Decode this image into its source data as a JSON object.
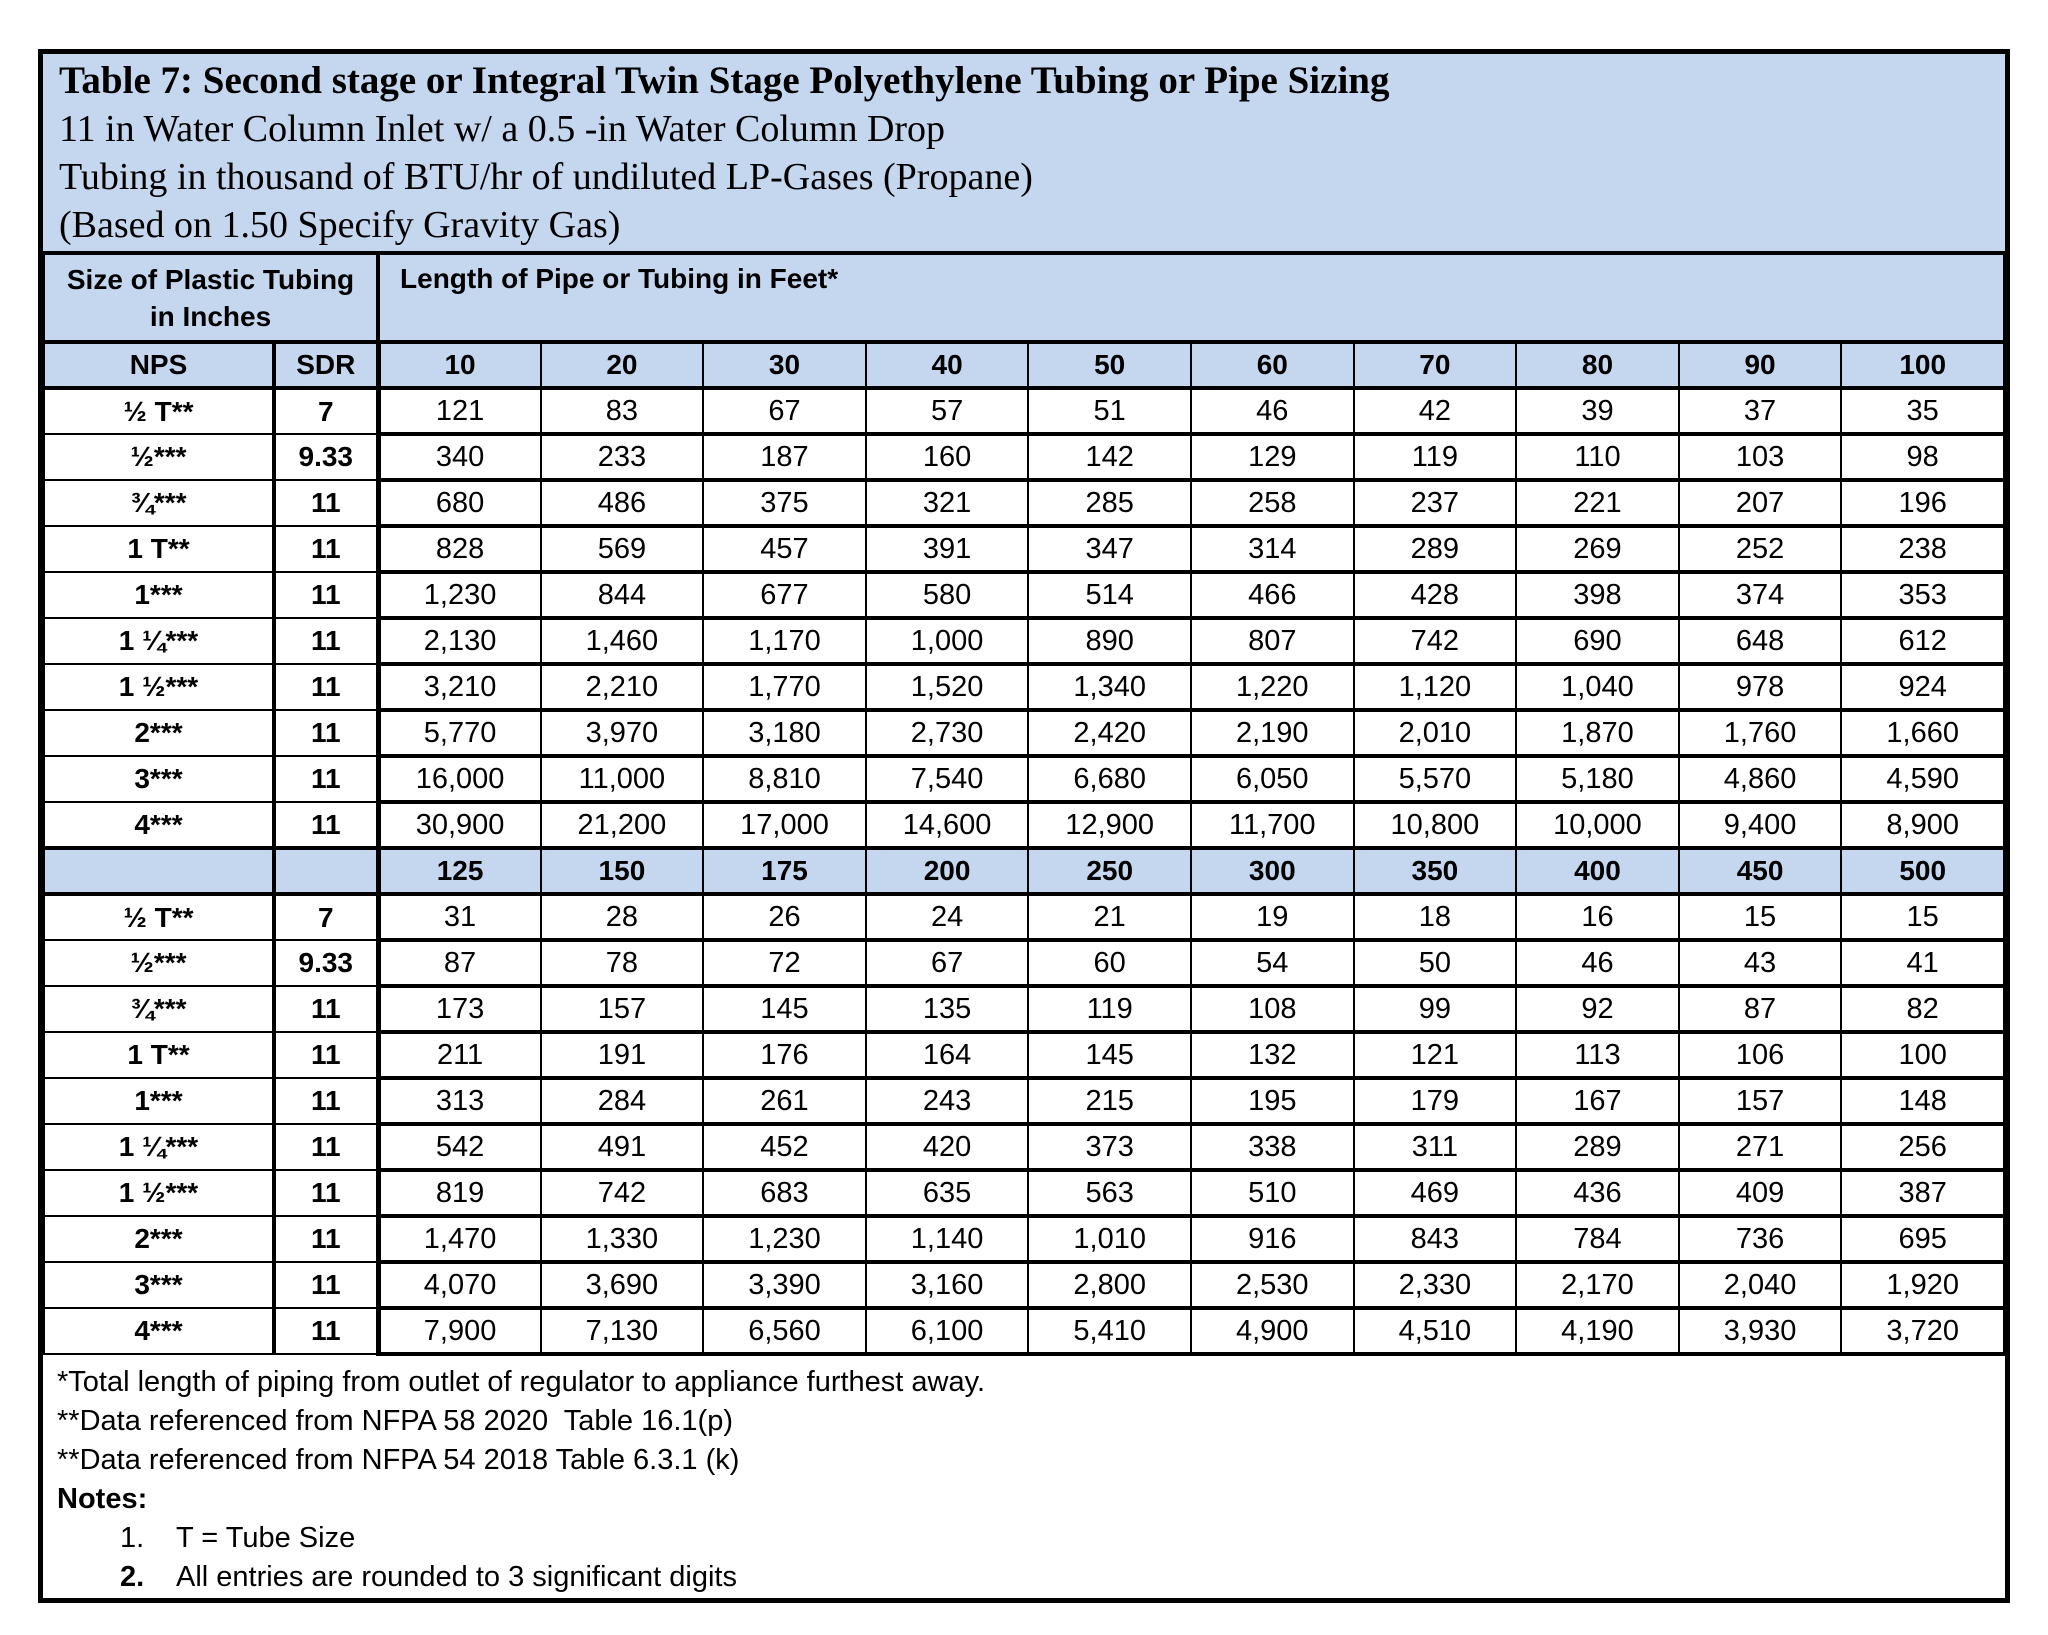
{
  "colors": {
    "header_bg": "#c5d7ef",
    "border": "#000000",
    "page_bg": "#ffffff"
  },
  "title": {
    "line1": "Table 7: Second stage or Integral Twin Stage Polyethylene Tubing or Pipe Sizing",
    "line2": "11 in Water Column Inlet w/ a 0.5 -in Water Column Drop",
    "line3": "Tubing in thousand of BTU/hr of undiluted LP-Gases (Propane)",
    "line4": "(Based on 1.50 Specify Gravity Gas)"
  },
  "table": {
    "group_headers": {
      "size_label_line1": "Size of Plastic Tubing",
      "size_label_line2": "in Inches",
      "length_label": "Length of Pipe or Tubing in Feet*"
    },
    "columns_first": [
      "NPS",
      "SDR",
      "10",
      "20",
      "30",
      "40",
      "50",
      "60",
      "70",
      "80",
      "90",
      "100"
    ],
    "rows_first": [
      {
        "nps": "½ T**",
        "sdr": "7",
        "values": [
          "121",
          "83",
          "67",
          "57",
          "51",
          "46",
          "42",
          "39",
          "37",
          "35"
        ]
      },
      {
        "nps": "½***",
        "sdr": "9.33",
        "values": [
          "340",
          "233",
          "187",
          "160",
          "142",
          "129",
          "119",
          "110",
          "103",
          "98"
        ]
      },
      {
        "nps": "¾***",
        "sdr": "11",
        "values": [
          "680",
          "486",
          "375",
          "321",
          "285",
          "258",
          "237",
          "221",
          "207",
          "196"
        ]
      },
      {
        "nps": "1 T**",
        "sdr": "11",
        "values": [
          "828",
          "569",
          "457",
          "391",
          "347",
          "314",
          "289",
          "269",
          "252",
          "238"
        ]
      },
      {
        "nps": "1***",
        "sdr": "11",
        "values": [
          "1,230",
          "844",
          "677",
          "580",
          "514",
          "466",
          "428",
          "398",
          "374",
          "353"
        ]
      },
      {
        "nps": "1 ¼***",
        "sdr": "11",
        "values": [
          "2,130",
          "1,460",
          "1,170",
          "1,000",
          "890",
          "807",
          "742",
          "690",
          "648",
          "612"
        ]
      },
      {
        "nps": "1 ½***",
        "sdr": "11",
        "values": [
          "3,210",
          "2,210",
          "1,770",
          "1,520",
          "1,340",
          "1,220",
          "1,120",
          "1,040",
          "978",
          "924"
        ]
      },
      {
        "nps": "2***",
        "sdr": "11",
        "values": [
          "5,770",
          "3,970",
          "3,180",
          "2,730",
          "2,420",
          "2,190",
          "2,010",
          "1,870",
          "1,760",
          "1,660"
        ]
      },
      {
        "nps": "3***",
        "sdr": "11",
        "values": [
          "16,000",
          "11,000",
          "8,810",
          "7,540",
          "6,680",
          "6,050",
          "5,570",
          "5,180",
          "4,860",
          "4,590"
        ]
      },
      {
        "nps": "4***",
        "sdr": "11",
        "values": [
          "30,900",
          "21,200",
          "17,000",
          "14,600",
          "12,900",
          "11,700",
          "10,800",
          "10,000",
          "9,400",
          "8,900"
        ]
      }
    ],
    "columns_second": [
      "125",
      "150",
      "175",
      "200",
      "250",
      "300",
      "350",
      "400",
      "450",
      "500"
    ],
    "rows_second": [
      {
        "nps": "½ T**",
        "sdr": "7",
        "values": [
          "31",
          "28",
          "26",
          "24",
          "21",
          "19",
          "18",
          "16",
          "15",
          "15"
        ]
      },
      {
        "nps": "½***",
        "sdr": "9.33",
        "values": [
          "87",
          "78",
          "72",
          "67",
          "60",
          "54",
          "50",
          "46",
          "43",
          "41"
        ]
      },
      {
        "nps": "¾***",
        "sdr": "11",
        "values": [
          "173",
          "157",
          "145",
          "135",
          "119",
          "108",
          "99",
          "92",
          "87",
          "82"
        ]
      },
      {
        "nps": "1 T**",
        "sdr": "11",
        "values": [
          "211",
          "191",
          "176",
          "164",
          "145",
          "132",
          "121",
          "113",
          "106",
          "100"
        ]
      },
      {
        "nps": "1***",
        "sdr": "11",
        "values": [
          "313",
          "284",
          "261",
          "243",
          "215",
          "195",
          "179",
          "167",
          "157",
          "148"
        ]
      },
      {
        "nps": "1 ¼***",
        "sdr": "11",
        "values": [
          "542",
          "491",
          "452",
          "420",
          "373",
          "338",
          "311",
          "289",
          "271",
          "256"
        ]
      },
      {
        "nps": "1 ½***",
        "sdr": "11",
        "values": [
          "819",
          "742",
          "683",
          "635",
          "563",
          "510",
          "469",
          "436",
          "409",
          "387"
        ]
      },
      {
        "nps": "2***",
        "sdr": "11",
        "values": [
          "1,470",
          "1,330",
          "1,230",
          "1,140",
          "1,010",
          "916",
          "843",
          "784",
          "736",
          "695"
        ]
      },
      {
        "nps": "3***",
        "sdr": "11",
        "values": [
          "4,070",
          "3,690",
          "3,390",
          "3,160",
          "2,800",
          "2,530",
          "2,330",
          "2,170",
          "2,040",
          "1,920"
        ]
      },
      {
        "nps": "4***",
        "sdr": "11",
        "values": [
          "7,900",
          "7,130",
          "6,560",
          "6,100",
          "5,410",
          "4,900",
          "4,510",
          "4,190",
          "3,930",
          "3,720"
        ]
      }
    ]
  },
  "footnotes": {
    "line1": "*Total length of piping from outlet of regulator to appliance furthest away.",
    "line2": "**Data referenced from NFPA 58 2020  Table 16.1(p)",
    "line3": "**Data referenced from NFPA 54 2018 Table 6.3.1 (k)",
    "notes_label": "Notes:",
    "note1_num": "1.",
    "note1_text": "T = Tube Size",
    "note2_num": "2.",
    "note2_text": "All entries are rounded to 3 significant digits"
  }
}
